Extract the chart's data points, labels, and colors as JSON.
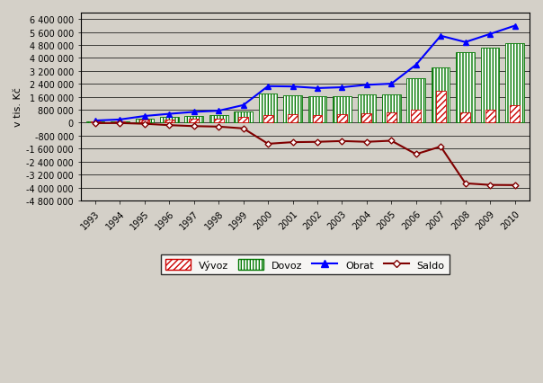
{
  "years": [
    1993,
    1994,
    1995,
    1996,
    1997,
    1998,
    1999,
    2000,
    2001,
    2002,
    2003,
    2004,
    2005,
    2006,
    2007,
    2008,
    2009,
    2010
  ],
  "vyvoz": [
    55000,
    90000,
    175000,
    200000,
    230000,
    250000,
    370000,
    480000,
    520000,
    480000,
    530000,
    580000,
    650000,
    820000,
    1950000,
    620000,
    820000,
    1070000
  ],
  "dovoz": [
    80000,
    110000,
    240000,
    350000,
    440000,
    490000,
    720000,
    1780000,
    1720000,
    1660000,
    1660000,
    1760000,
    1760000,
    2760000,
    3420000,
    4360000,
    4660000,
    4920000
  ],
  "obrat": [
    135000,
    200000,
    415000,
    550000,
    670000,
    740000,
    1090000,
    2260000,
    2240000,
    2140000,
    2190000,
    2340000,
    2410000,
    3580000,
    5370000,
    4980000,
    5480000,
    5990000
  ],
  "saldo": [
    -25000,
    -20000,
    -65000,
    -150000,
    -210000,
    -240000,
    -350000,
    -1300000,
    -1200000,
    -1180000,
    -1130000,
    -1180000,
    -1110000,
    -1940000,
    -1470000,
    -3740000,
    -3840000,
    -3850000
  ],
  "ylabel": "v tis. Kč",
  "ylim": [
    -4800000,
    6800000
  ],
  "yticks": [
    -4800000,
    -4000000,
    -3200000,
    -2400000,
    -1600000,
    -800000,
    0,
    800000,
    1600000,
    2400000,
    3200000,
    4000000,
    4800000,
    5600000,
    6400000
  ],
  "background_color": "#d4d0c8",
  "plot_bg_color": "#d4d0c8",
  "obrat_color": "#0000ff",
  "saldo_color": "#800000",
  "legend_labels": [
    "Vývoz",
    "Dovoz",
    "Obrat",
    "Saldo"
  ]
}
